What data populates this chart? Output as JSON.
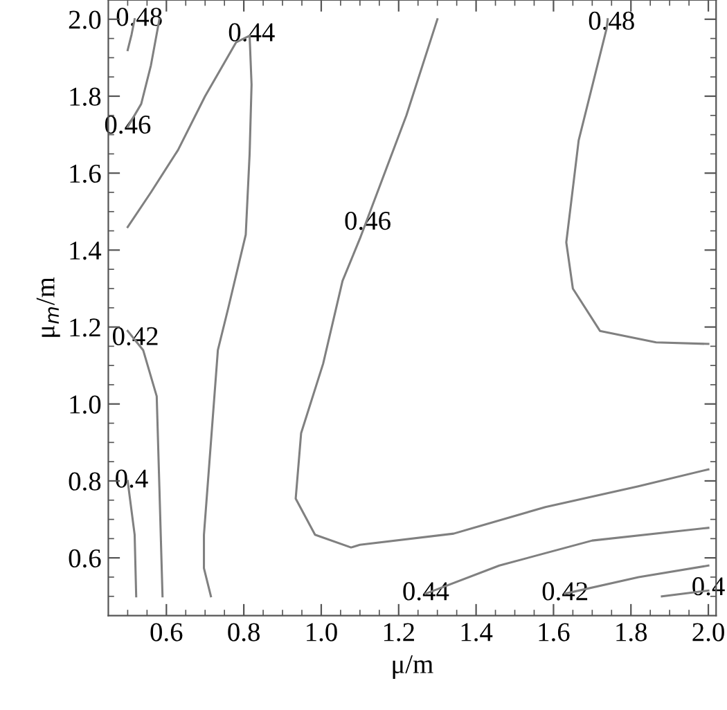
{
  "chart_data": {
    "type": "line",
    "xlabel": "μ/m",
    "ylabel": "μ$_{m}$/m",
    "xlim": [
      0.45,
      2.02
    ],
    "ylim": [
      0.45,
      2.05
    ],
    "xticks": [
      {
        "value": 0.5,
        "label": null
      },
      {
        "value": 0.55,
        "label": null
      },
      {
        "value": 0.6,
        "label": "0.6"
      },
      {
        "value": 0.65,
        "label": null
      },
      {
        "value": 0.7,
        "label": null
      },
      {
        "value": 0.75,
        "label": null
      },
      {
        "value": 0.8,
        "label": "0.8"
      },
      {
        "value": 0.85,
        "label": null
      },
      {
        "value": 0.9,
        "label": null
      },
      {
        "value": 0.95,
        "label": null
      },
      {
        "value": 1.0,
        "label": "1.0"
      },
      {
        "value": 1.05,
        "label": null
      },
      {
        "value": 1.1,
        "label": null
      },
      {
        "value": 1.15,
        "label": null
      },
      {
        "value": 1.2,
        "label": "1.2"
      },
      {
        "value": 1.25,
        "label": null
      },
      {
        "value": 1.3,
        "label": null
      },
      {
        "value": 1.35,
        "label": null
      },
      {
        "value": 1.4,
        "label": "1.4"
      },
      {
        "value": 1.45,
        "label": null
      },
      {
        "value": 1.5,
        "label": null
      },
      {
        "value": 1.55,
        "label": null
      },
      {
        "value": 1.6,
        "label": "1.6"
      },
      {
        "value": 1.65,
        "label": null
      },
      {
        "value": 1.7,
        "label": null
      },
      {
        "value": 1.75,
        "label": null
      },
      {
        "value": 1.8,
        "label": "1.8"
      },
      {
        "value": 1.85,
        "label": null
      },
      {
        "value": 1.9,
        "label": null
      },
      {
        "value": 1.95,
        "label": null
      },
      {
        "value": 2.0,
        "label": "2.0"
      }
    ],
    "yticks": [
      {
        "value": 0.5,
        "label": null
      },
      {
        "value": 0.55,
        "label": null
      },
      {
        "value": 0.6,
        "label": "0.6"
      },
      {
        "value": 0.65,
        "label": null
      },
      {
        "value": 0.7,
        "label": null
      },
      {
        "value": 0.75,
        "label": null
      },
      {
        "value": 0.8,
        "label": "0.8"
      },
      {
        "value": 0.85,
        "label": null
      },
      {
        "value": 0.9,
        "label": null
      },
      {
        "value": 0.95,
        "label": null
      },
      {
        "value": 1.0,
        "label": "1.0"
      },
      {
        "value": 1.05,
        "label": null
      },
      {
        "value": 1.1,
        "label": null
      },
      {
        "value": 1.15,
        "label": null
      },
      {
        "value": 1.2,
        "label": "1.2"
      },
      {
        "value": 1.25,
        "label": null
      },
      {
        "value": 1.3,
        "label": null
      },
      {
        "value": 1.35,
        "label": null
      },
      {
        "value": 1.4,
        "label": "1.4"
      },
      {
        "value": 1.45,
        "label": null
      },
      {
        "value": 1.5,
        "label": null
      },
      {
        "value": 1.55,
        "label": null
      },
      {
        "value": 1.6,
        "label": "1.6"
      },
      {
        "value": 1.65,
        "label": null
      },
      {
        "value": 1.7,
        "label": null
      },
      {
        "value": 1.75,
        "label": null
      },
      {
        "value": 1.8,
        "label": "1.8"
      },
      {
        "value": 1.85,
        "label": null
      },
      {
        "value": 1.9,
        "label": null
      },
      {
        "value": 1.95,
        "label": null
      },
      {
        "value": 2.0,
        "label": "2.0"
      }
    ],
    "grid": false,
    "line_style": "solid",
    "series": [
      {
        "color": "#808080",
        "x": [
          0.518,
          0.51,
          0.5
        ],
        "values": [
          2.0,
          1.96,
          1.92
        ]
      },
      {
        "color": "#808080",
        "x": [
          0.582,
          0.56,
          0.535,
          0.5
        ],
        "values": [
          2.0,
          1.88,
          1.78,
          1.72
        ]
      },
      {
        "color": "#808080",
        "x": [
          0.5,
          0.56,
          0.63,
          0.7,
          0.78,
          0.815,
          0.82,
          0.815,
          0.805,
          0.76,
          0.733,
          0.715,
          0.697,
          0.697,
          0.715
        ],
        "values": [
          1.46,
          1.55,
          1.66,
          1.8,
          1.94,
          1.957,
          1.83,
          1.65,
          1.44,
          1.25,
          1.14,
          0.9,
          0.66,
          0.573,
          0.5
        ]
      },
      {
        "color": "#808080",
        "x": [
          1.3,
          1.22,
          1.1,
          1.055,
          1.005,
          0.948,
          0.934,
          0.984,
          1.077,
          1.1,
          1.342,
          1.579,
          1.819,
          2.0
        ],
        "values": [
          2.0,
          1.75,
          1.43,
          1.32,
          1.105,
          0.924,
          0.754,
          0.66,
          0.627,
          0.634,
          0.663,
          0.732,
          0.786,
          0.83
        ]
      },
      {
        "color": "#808080",
        "x": [
          1.74,
          1.737,
          1.665,
          1.633,
          1.65,
          1.72,
          1.865,
          2.0
        ],
        "values": [
          2.0,
          1.975,
          1.685,
          1.42,
          1.3,
          1.19,
          1.16,
          1.156
        ]
      },
      {
        "color": "#808080",
        "x": [
          1.27,
          1.46,
          1.7,
          2.0
        ],
        "values": [
          0.507,
          0.58,
          0.645,
          0.678
        ]
      },
      {
        "color": "#808080",
        "x": [
          1.63,
          1.82,
          2.0
        ],
        "values": [
          0.507,
          0.55,
          0.58
        ]
      },
      {
        "color": "#808080",
        "x": [
          1.88,
          2.0
        ],
        "values": [
          0.5,
          0.515
        ]
      },
      {
        "color": "#808080",
        "x": [
          0.5,
          0.54,
          0.575,
          0.582,
          0.59
        ],
        "values": [
          1.19,
          1.14,
          1.02,
          0.78,
          0.5
        ]
      },
      {
        "color": "#808080",
        "x": [
          0.5,
          0.518,
          0.522
        ],
        "values": [
          0.8,
          0.66,
          0.5
        ]
      }
    ],
    "annotations": [
      {
        "text": "0.48",
        "x": 0.53,
        "y": 2.0
      },
      {
        "text": "0.44",
        "x": 0.82,
        "y": 1.96
      },
      {
        "text": "0.46",
        "x": 0.5,
        "y": 1.72
      },
      {
        "text": "0.46",
        "x": 1.12,
        "y": 1.47
      },
      {
        "text": "0.48",
        "x": 1.75,
        "y": 1.99
      },
      {
        "text": "0.42",
        "x": 0.52,
        "y": 1.17
      },
      {
        "text": "0.4",
        "x": 0.51,
        "y": 0.8
      },
      {
        "text": "0.44",
        "x": 1.27,
        "y": 0.507
      },
      {
        "text": "0.42",
        "x": 1.63,
        "y": 0.507
      },
      {
        "text": "0.4",
        "x": 2.0,
        "y": 0.52
      }
    ]
  }
}
